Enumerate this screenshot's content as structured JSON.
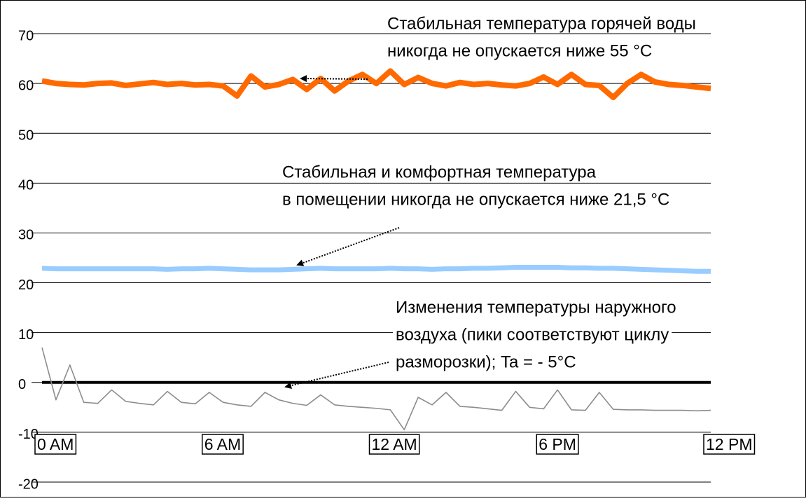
{
  "chart_data": {
    "type": "line",
    "x": [
      0,
      0.5,
      1,
      1.5,
      2,
      2.5,
      3,
      3.5,
      4,
      4.5,
      5,
      5.5,
      6,
      6.5,
      7,
      7.5,
      8,
      8.5,
      9,
      9.5,
      10,
      10.5,
      11,
      11.5,
      12,
      12.5,
      13,
      13.5,
      14,
      14.5,
      15,
      15.5,
      16,
      16.5,
      17,
      17.5,
      18,
      18.5,
      19,
      19.5,
      20,
      20.5,
      21,
      21.5,
      22,
      22.5,
      23,
      23.5,
      24
    ],
    "series": [
      {
        "color": "#ff6a00",
        "values": [
          60.5,
          60,
          59.8,
          59.7,
          60,
          60.1,
          59.6,
          59.9,
          60.2,
          59.8,
          60,
          59.7,
          59.8,
          59.5,
          57.5,
          61.5,
          59.3,
          59.8,
          60.8,
          58.8,
          61,
          58.5,
          60.5,
          61.8,
          60,
          62.5,
          59.8,
          61.2,
          60,
          59.5,
          60.2,
          59.8,
          60,
          59.7,
          59.5,
          60,
          61.3,
          59.8,
          61.8,
          59.8,
          59.6,
          57.2,
          60,
          61.8,
          60.3,
          59.8,
          59.6,
          59.3,
          59
        ]
      },
      {
        "color": "#99ccff",
        "values": [
          22.9,
          22.8,
          22.8,
          22.8,
          22.8,
          22.8,
          22.8,
          22.8,
          22.8,
          22.7,
          22.8,
          22.8,
          22.9,
          22.8,
          22.7,
          22.6,
          22.6,
          22.6,
          22.7,
          22.8,
          22.9,
          22.8,
          22.8,
          22.8,
          22.8,
          22.9,
          22.8,
          22.8,
          22.7,
          22.8,
          22.8,
          22.9,
          22.9,
          23,
          23.1,
          23.1,
          23.1,
          23.1,
          23,
          23,
          22.9,
          22.9,
          22.8,
          22.7,
          22.6,
          22.5,
          22.4,
          22.3,
          22.3
        ]
      },
      {
        "color": "#000000",
        "values": [
          0,
          0,
          0,
          0,
          0,
          0,
          0,
          0,
          0,
          0,
          0,
          0,
          0,
          0,
          0,
          0,
          0,
          0,
          0,
          0,
          0,
          0,
          0,
          0,
          0,
          0,
          0,
          0,
          0,
          0,
          0,
          0,
          0,
          0,
          0,
          0,
          0,
          0,
          0,
          0,
          0,
          0,
          0,
          0,
          0,
          0,
          0,
          0,
          0
        ]
      },
      {
        "color": "#8c8c8c",
        "values": [
          7,
          -3.5,
          3.5,
          -4,
          -4.2,
          -1.5,
          -3.8,
          -4.2,
          -4.5,
          -1.8,
          -4,
          -4.3,
          -2,
          -4,
          -4.5,
          -4.8,
          -2,
          -3.5,
          -4.2,
          -4.6,
          -2.5,
          -4.5,
          -4.8,
          -5,
          -5.2,
          -5.5,
          -9.5,
          -3,
          -4.5,
          -2,
          -4.8,
          -5,
          -5.3,
          -5.6,
          -1.8,
          -5,
          -5.3,
          -1.5,
          -5.5,
          -5.6,
          -2,
          -5.4,
          -5.5,
          -5.5,
          -5.6,
          -5.6,
          -5.6,
          -5.7,
          -5.6
        ]
      }
    ],
    "xlim": [
      0,
      24
    ],
    "xticks": [
      {
        "value": 0,
        "label": "0 AM"
      },
      {
        "value": 6,
        "label": "6 AM"
      },
      {
        "value": 12,
        "label": "12 AM"
      },
      {
        "value": 18,
        "label": "6 PM"
      },
      {
        "value": 24,
        "label": "12 PM"
      }
    ],
    "ylim": [
      -20,
      70
    ],
    "yticks": [
      -20,
      -10,
      0,
      10,
      20,
      30,
      40,
      50,
      60,
      70
    ],
    "grid": true,
    "annotations": [
      {
        "lines": [
          "Стабильная температура горячей воды",
          "никогда не опускается ниже 55 °C"
        ]
      },
      {
        "lines": [
          "Стабильная и комфортная температура",
          "в помещении никогда не опускается ниже 21,5 °C"
        ]
      },
      {
        "lines": [
          "Изменения температуры наружного",
          "воздуха (пики соответствуют циклу",
          "разморозки); Ta = - 5°C"
        ]
      }
    ]
  }
}
